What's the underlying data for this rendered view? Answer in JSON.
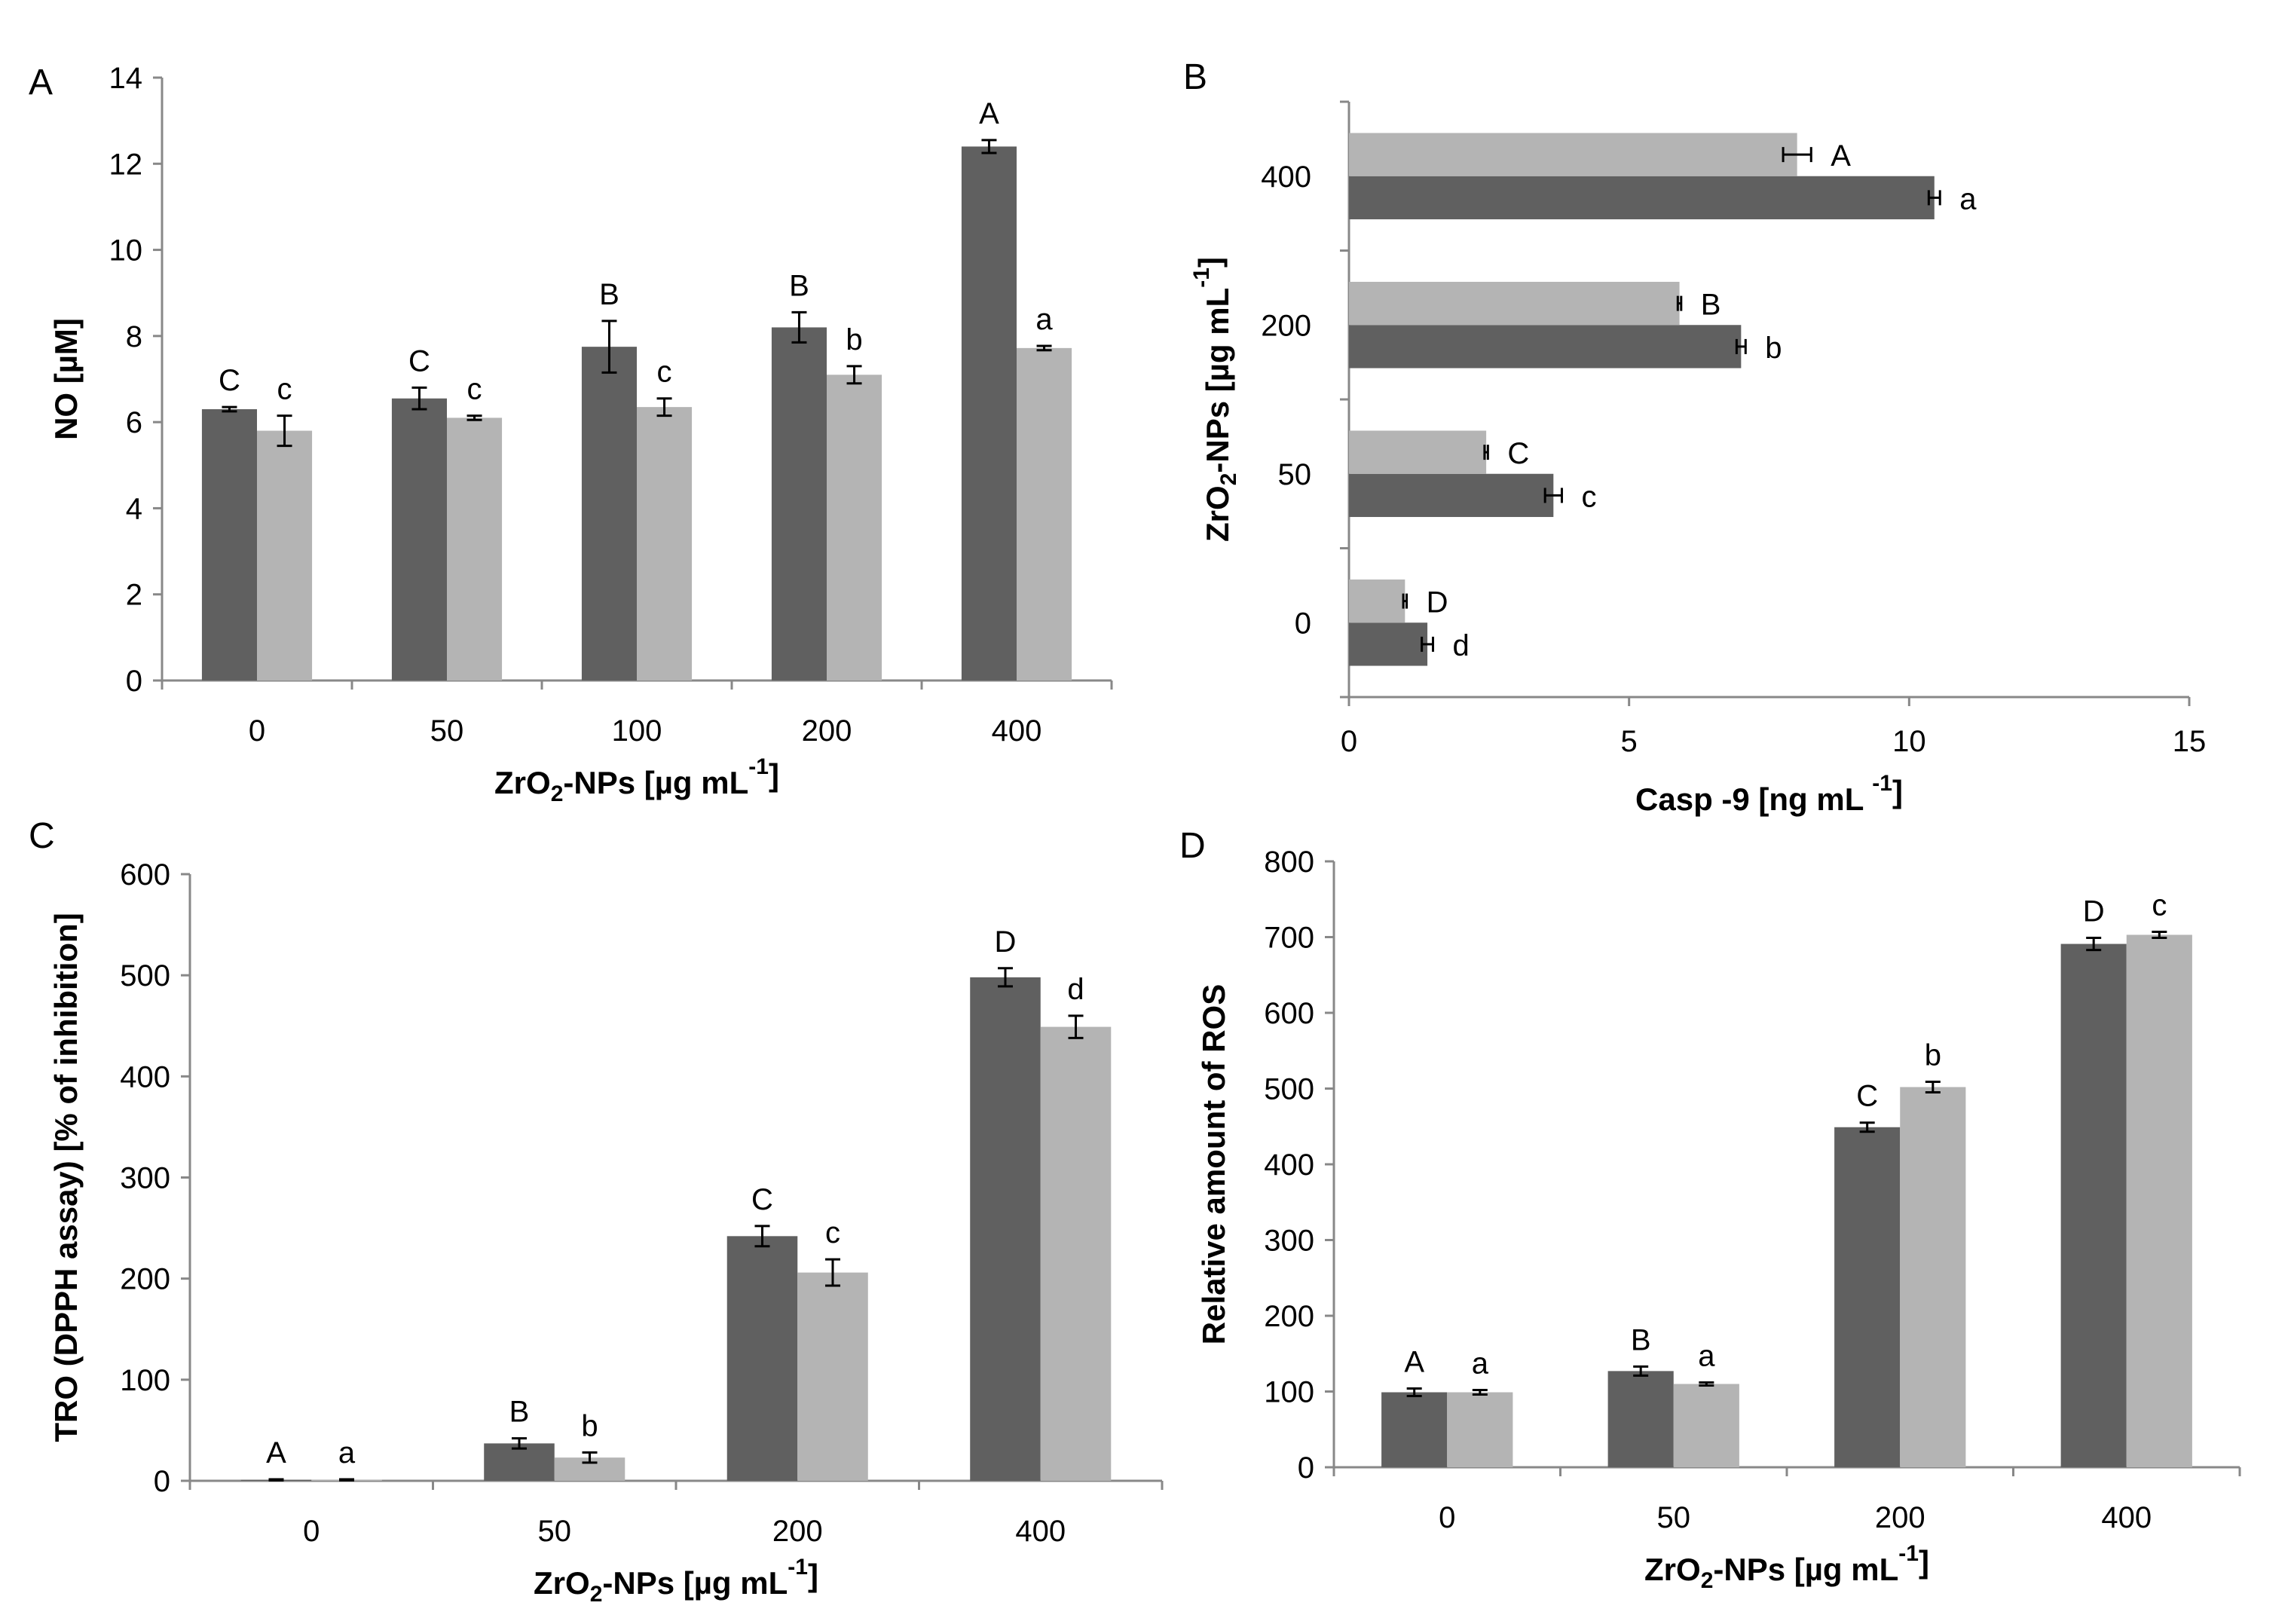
{
  "figure": {
    "description_panels": [
      "A",
      "B",
      "C",
      "D"
    ]
  },
  "colors": {
    "dark": "#606060",
    "light": "#b4b4b4",
    "axis": "#888888",
    "text": "#000000"
  },
  "chart_data": [
    {
      "panel": "A",
      "type": "bar",
      "orientation": "vertical",
      "categories": [
        "0",
        "50",
        "100",
        "200",
        "400"
      ],
      "series": [
        {
          "name": "dark",
          "values": [
            6.3,
            6.55,
            7.75,
            8.2,
            12.4
          ],
          "errors": [
            0.05,
            0.25,
            0.6,
            0.35,
            0.15
          ],
          "labels": [
            "C",
            "C",
            "B",
            "B",
            "A"
          ]
        },
        {
          "name": "light",
          "values": [
            5.8,
            6.1,
            6.35,
            7.1,
            7.72
          ],
          "errors": [
            0.35,
            0.05,
            0.2,
            0.2,
            0.05
          ],
          "labels": [
            "c",
            "c",
            "c",
            "b",
            "a"
          ]
        }
      ],
      "ylim": [
        0,
        14
      ],
      "yticks": [
        "0",
        "2",
        "4",
        "6",
        "8",
        "10",
        "12",
        "14"
      ],
      "xlabel_parts": {
        "pre": "ZrO",
        "sub": "2",
        "mid": "-NPs [µg mL",
        "sup": "-1",
        "post": "]"
      },
      "ylabel": "NO [µM]"
    },
    {
      "panel": "B",
      "type": "bar",
      "orientation": "horizontal",
      "categories": [
        "0",
        "50",
        "200",
        "400"
      ],
      "series": [
        {
          "name": "dark",
          "values": [
            1.4,
            3.65,
            7.0,
            10.45
          ],
          "errors": [
            0.1,
            0.15,
            0.08,
            0.1
          ],
          "labels": [
            "d",
            "c",
            "b",
            "a"
          ]
        },
        {
          "name": "light",
          "values": [
            1.0,
            2.45,
            5.9,
            8.0
          ],
          "errors": [
            0.03,
            0.03,
            0.03,
            0.25
          ],
          "labels": [
            "D",
            "C",
            "B",
            "A"
          ]
        }
      ],
      "xlim": [
        0,
        15
      ],
      "xticks": [
        "0",
        "5",
        "10",
        "15"
      ],
      "xlabel_parts": {
        "pre": "Casp -9 [ng mL ",
        "sup": "-1",
        "post": "]"
      },
      "ylabel_parts": {
        "pre": "ZrO",
        "sub": "2",
        "mid": "-NPs [µg mL",
        "sup": "-1",
        "post": "]"
      }
    },
    {
      "panel": "C",
      "type": "bar",
      "orientation": "vertical",
      "categories": [
        "0",
        "50",
        "200",
        "400"
      ],
      "series": [
        {
          "name": "dark",
          "values": [
            1,
            37,
            242,
            498
          ],
          "errors": [
            0.5,
            5,
            10,
            9
          ],
          "labels": [
            "A",
            "B",
            "C",
            "D"
          ]
        },
        {
          "name": "light",
          "values": [
            1,
            23,
            206,
            449
          ],
          "errors": [
            0.5,
            5,
            13,
            11
          ],
          "labels": [
            "a",
            "b",
            "c",
            "d"
          ]
        }
      ],
      "ylim": [
        0,
        600
      ],
      "yticks": [
        "0",
        "100",
        "200",
        "300",
        "400",
        "500",
        "600"
      ],
      "xlabel_parts": {
        "pre": "ZrO",
        "sub": "2",
        "mid": "-NPs [µg mL",
        "sup": "-1",
        "post": "]"
      },
      "ylabel": "TRO (DPPH assay) [% of inhibition]"
    },
    {
      "panel": "D",
      "type": "bar",
      "orientation": "vertical",
      "categories": [
        "0",
        "50",
        "200",
        "400"
      ],
      "series": [
        {
          "name": "dark",
          "values": [
            99,
            127,
            449,
            691
          ],
          "errors": [
            5,
            6,
            6,
            8
          ],
          "labels": [
            "A",
            "B",
            "C",
            "D"
          ]
        },
        {
          "name": "light",
          "values": [
            99,
            110,
            502,
            703
          ],
          "errors": [
            3,
            2,
            7,
            4
          ],
          "labels": [
            "a",
            "a",
            "b",
            "c"
          ]
        }
      ],
      "ylim": [
        0,
        800
      ],
      "yticks": [
        "0",
        "100",
        "200",
        "300",
        "400",
        "500",
        "600",
        "700",
        "800"
      ],
      "xlabel_parts": {
        "pre": "ZrO",
        "sub": "2",
        "mid": "-NPs [µg mL",
        "sup": "-1",
        "post": "]"
      },
      "ylabel": "Relative amount of ROS"
    }
  ]
}
